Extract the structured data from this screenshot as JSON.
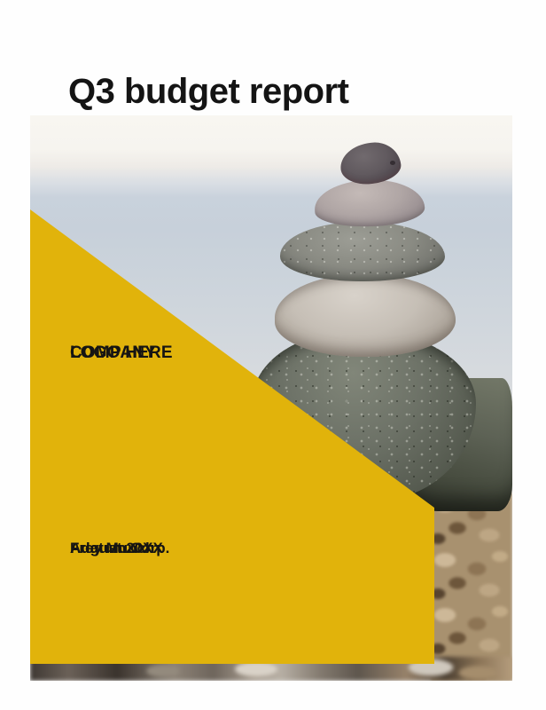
{
  "page": {
    "title": "Q3 budget report"
  },
  "logo_placeholder": {
    "line1": "COMPANY",
    "line2": "LOGO HERE"
  },
  "details": {
    "company": "Adatum Corp.",
    "date": "August 20XX",
    "author": "Frey Munch"
  },
  "photo": {
    "alt": "Stack of five balanced gray zen stones on a large rock above a pebble beach, blurred sea horizon behind"
  },
  "colors": {
    "accent_yellow": "#E1B30B",
    "text": "#161513",
    "page_background": "#FFFFFF"
  }
}
